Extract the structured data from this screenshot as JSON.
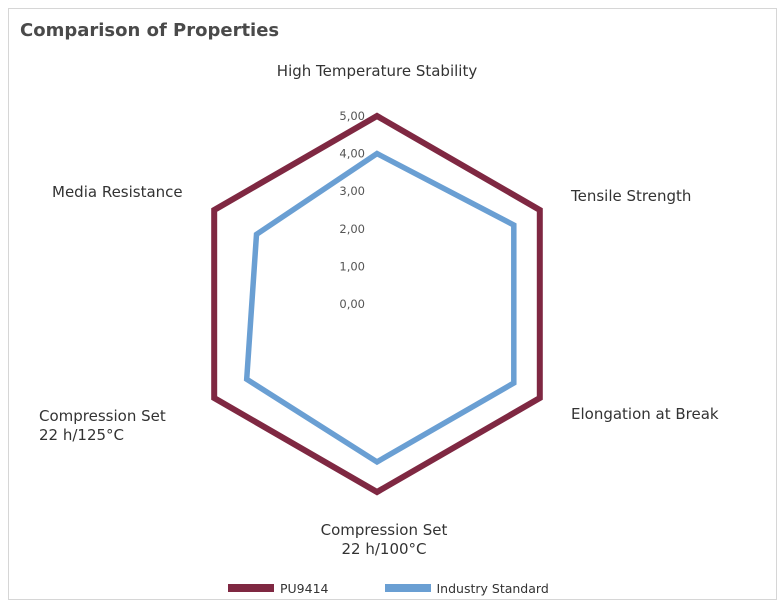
{
  "colors": {
    "pu9414": "#7f2842",
    "industry_standard": "#6a9fd3"
  },
  "chart_data": {
    "type": "radar",
    "title": "Comparison of Properties",
    "axes": [
      "High Temperature Stability",
      "Tensile Strength",
      "Elongation at Break",
      "Compression Set\n22 h/100°C",
      "Compression Set\n22 h/125°C",
      "Media Resistance"
    ],
    "tick_labels": [
      "0,00",
      "1,00",
      "2,00",
      "3,00",
      "4,00",
      "5,00"
    ],
    "range": [
      0,
      5
    ],
    "legend_position": "bottom",
    "series": [
      {
        "name": "PU9414",
        "values": [
          5,
          5,
          5,
          5,
          5,
          5
        ]
      },
      {
        "name": "Industry Standard",
        "values": [
          4,
          4.2,
          4.2,
          4.2,
          4,
          3.7
        ]
      }
    ]
  }
}
